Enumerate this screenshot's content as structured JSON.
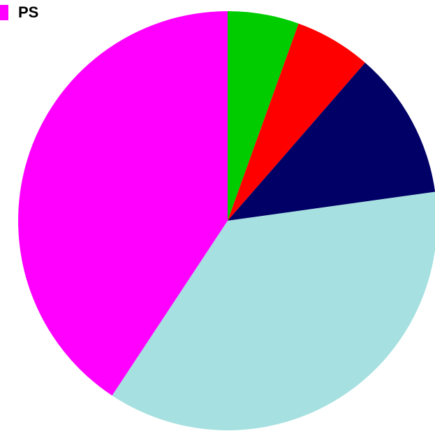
{
  "chart_data": {
    "type": "pie",
    "start_angle_deg": 0,
    "direction": "clockwise",
    "slices": [
      {
        "label": "",
        "value": 5.5,
        "color": "#00cc00"
      },
      {
        "label": "",
        "value": 5.9,
        "color": "#ff0000"
      },
      {
        "label": "",
        "value": 11.4,
        "color": "#000066"
      },
      {
        "label": "",
        "value": 36.5,
        "color": "#a6e0e0"
      },
      {
        "label": "PS",
        "value": 40.7,
        "color": "#ff00ff"
      }
    ],
    "legend": {
      "position": "top-left",
      "entries": [
        {
          "label": "PS",
          "color": "#ff00ff"
        }
      ]
    }
  }
}
